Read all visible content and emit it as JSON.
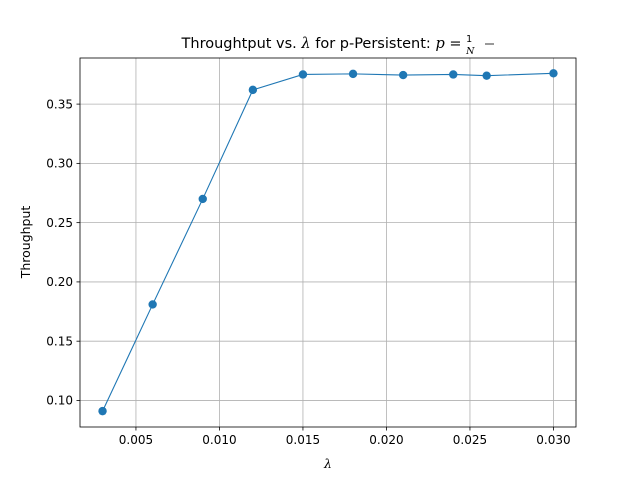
{
  "chart_data": {
    "type": "line",
    "title": {
      "prefix": "Throughtput vs. ",
      "lambda_symbol": "λ",
      "middle": " for p-Persistent: ",
      "p_symbol": "p",
      "equals": " = ",
      "numerator": "1",
      "denominator": "N"
    },
    "xlabel": "λ",
    "ylabel": "Throughput",
    "xlim": [
      0.00165,
      0.03135
    ],
    "ylim": [
      0.0776,
      0.3889
    ],
    "x_ticks": [
      0.005,
      0.01,
      0.015,
      0.02,
      0.025,
      0.03
    ],
    "x_tick_labels": [
      "0.005",
      "0.010",
      "0.015",
      "0.020",
      "0.025",
      "0.030"
    ],
    "y_ticks": [
      0.1,
      0.15,
      0.2,
      0.25,
      0.3,
      0.35
    ],
    "y_tick_labels": [
      "0.10",
      "0.15",
      "0.20",
      "0.25",
      "0.30",
      "0.35"
    ],
    "grid": true,
    "series": [
      {
        "color": "#1f77b4",
        "marker": "circle",
        "x": [
          0.003,
          0.006,
          0.009,
          0.012,
          0.015,
          0.018,
          0.021,
          0.024,
          0.026,
          0.03
        ],
        "y": [
          0.091,
          0.181,
          0.27,
          0.362,
          0.375,
          0.3755,
          0.3745,
          0.375,
          0.374,
          0.376
        ]
      }
    ]
  }
}
